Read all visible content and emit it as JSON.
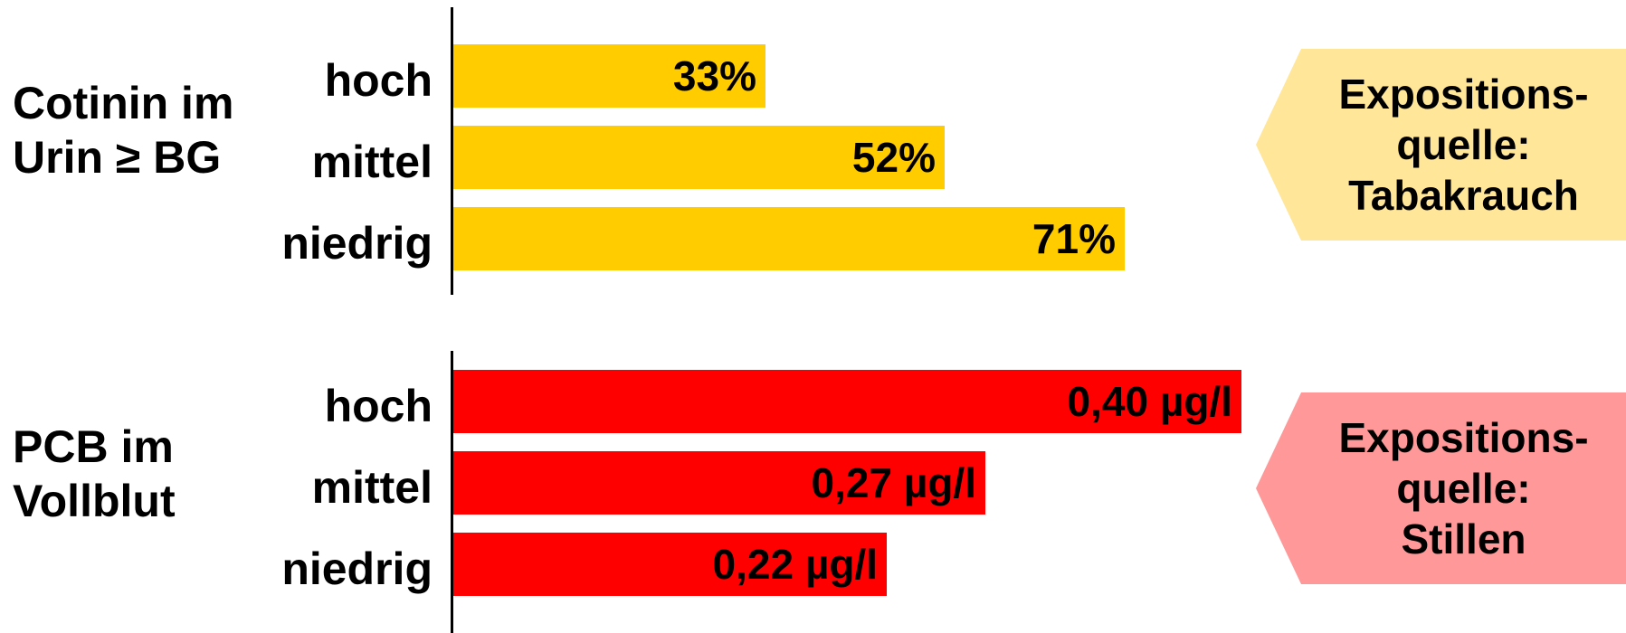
{
  "colors": {
    "cotinin_bar": "#FFCC00",
    "pcb_bar": "#FF0000",
    "cotinin_callout": "#FFE699",
    "pcb_callout": "#FF9999"
  },
  "chart_data": [
    {
      "type": "bar",
      "orientation": "horizontal",
      "group_label": "Cotinin im\nUrin ≥ BG",
      "categories": [
        "hoch",
        "mittel",
        "niedrig"
      ],
      "values": [
        33,
        52,
        71
      ],
      "value_labels": [
        "33%",
        "52%",
        "71%"
      ],
      "unit": "%",
      "xlim": [
        0,
        100
      ],
      "color": "#FFCC00",
      "callout": "Expositions-\nquelle:\nTabakrauch"
    },
    {
      "type": "bar",
      "orientation": "horizontal",
      "group_label": "PCB im\nVollblut",
      "categories": [
        "hoch",
        "mittel",
        "niedrig"
      ],
      "values": [
        0.4,
        0.27,
        0.22
      ],
      "value_labels": [
        "0,40 µg/l",
        "0,27 µg/l",
        "0,22 µg/l"
      ],
      "unit": "µg/l",
      "xlim": [
        0,
        0.48
      ],
      "color": "#FF0000",
      "callout": "Expositions-\nquelle:\nStillen"
    }
  ]
}
